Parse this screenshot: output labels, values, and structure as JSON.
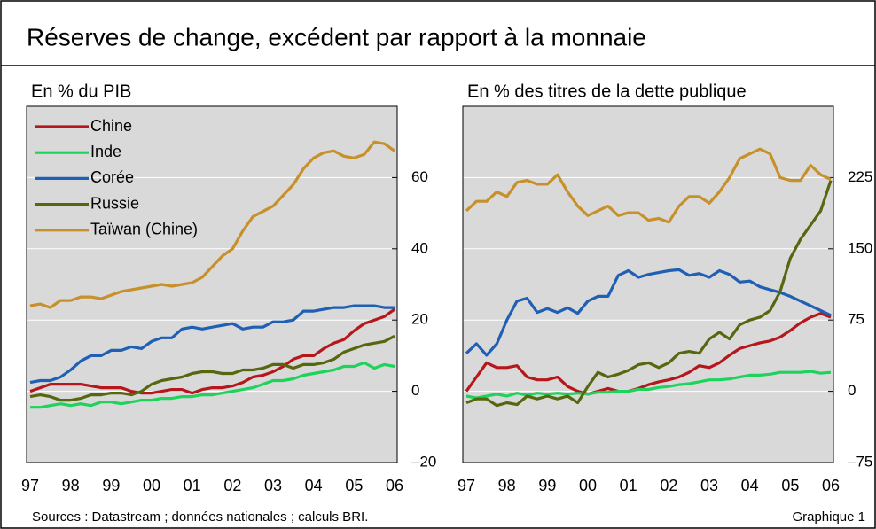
{
  "title": "Réserves de change, excédent par rapport à la monnaie",
  "source": "Sources : Datastream ; données nationales ; calculs BRI.",
  "figure_label": "Graphique 1",
  "chart_data": [
    {
      "type": "line",
      "title": "En % du PIB",
      "categories": [
        "97",
        null,
        null,
        null,
        "98",
        null,
        null,
        null,
        "99",
        null,
        null,
        null,
        "00",
        null,
        null,
        null,
        "01",
        null,
        null,
        null,
        "02",
        null,
        null,
        null,
        "03",
        null,
        null,
        null,
        "04",
        null,
        null,
        null,
        "05",
        null,
        null,
        null,
        "06"
      ],
      "ylim": [
        -20,
        80
      ],
      "yticks": [
        {
          "value": -20,
          "label": "–20"
        },
        0,
        20,
        40,
        60
      ],
      "grid": true,
      "legend": "upper-left",
      "series": [
        {
          "name": "Chine",
          "color": "#b5171c",
          "values": [
            0,
            1,
            2,
            2,
            2,
            2,
            1.5,
            1,
            1,
            1,
            0,
            -0.5,
            -0.5,
            0,
            0.5,
            0.5,
            -0.5,
            0.5,
            1,
            1,
            1.5,
            2.5,
            4,
            4.5,
            5.5,
            7,
            9,
            10,
            10,
            12,
            13.5,
            14.5,
            17,
            19,
            20,
            21,
            23
          ]
        },
        {
          "name": "Inde",
          "color": "#1ed35c",
          "values": [
            -4.5,
            -4.5,
            -4,
            -3.5,
            -4,
            -3.5,
            -4,
            -3,
            -3,
            -3.5,
            -3,
            -2.5,
            -2.5,
            -2,
            -2,
            -1.5,
            -1.5,
            -1,
            -1,
            -0.5,
            0,
            0.5,
            1,
            2,
            3,
            3,
            3.5,
            4.5,
            5,
            5.5,
            6,
            7,
            7,
            8,
            6.5,
            7.5,
            7
          ]
        },
        {
          "name": "Corée",
          "color": "#1f5fb4",
          "values": [
            2.5,
            3,
            3,
            4,
            6,
            8.5,
            10,
            10,
            11.5,
            11.5,
            12.5,
            12,
            14,
            15,
            15,
            17.5,
            18,
            17.5,
            18,
            18.5,
            19,
            17.5,
            18,
            18,
            19.5,
            19.5,
            20,
            22.5,
            22.5,
            23,
            23.5,
            23.5,
            24,
            24,
            24,
            23.5,
            23.5
          ]
        },
        {
          "name": "Russie",
          "color": "#56680f",
          "values": [
            -1.5,
            -1,
            -1.5,
            -2.5,
            -2.5,
            -2,
            -1,
            -1,
            -0.5,
            -0.5,
            -1,
            0,
            2,
            3,
            3.5,
            4,
            5,
            5.5,
            5.5,
            5,
            5,
            6,
            6,
            6.5,
            7.5,
            7.5,
            6.5,
            7.5,
            7.5,
            8,
            9,
            11,
            12,
            13,
            13.5,
            14,
            15.5
          ]
        },
        {
          "name": "Taïwan (Chine)",
          "color": "#c8902a",
          "values": [
            24,
            24.5,
            23.5,
            25.5,
            25.5,
            26.5,
            26.5,
            26,
            27,
            28,
            28.5,
            29,
            29.5,
            30,
            29.5,
            30,
            30.5,
            32,
            35,
            38,
            40,
            45,
            49,
            50.5,
            52,
            55,
            58,
            62.5,
            65.5,
            67,
            67.5,
            66,
            65.5,
            66.5,
            70,
            69.5,
            67.5
          ]
        }
      ]
    },
    {
      "type": "line",
      "title": "En % des titres de la dette publique",
      "categories": [
        "97",
        null,
        null,
        null,
        "98",
        null,
        null,
        null,
        "99",
        null,
        null,
        null,
        "00",
        null,
        null,
        null,
        "01",
        null,
        null,
        null,
        "02",
        null,
        null,
        null,
        "03",
        null,
        null,
        null,
        "04",
        null,
        null,
        null,
        "05",
        null,
        null,
        null,
        "06"
      ],
      "ylim": [
        -75,
        300
      ],
      "yticks": [
        {
          "value": -75,
          "label": "–75"
        },
        0,
        75,
        150,
        225
      ],
      "grid": true,
      "series": [
        {
          "color": "#b5171c",
          "values": [
            0,
            15,
            30,
            25,
            25,
            27,
            15,
            12,
            12,
            15,
            5,
            0,
            -3,
            0,
            3,
            0,
            0,
            3,
            7,
            10,
            12,
            15,
            20,
            27,
            25,
            30,
            38,
            45,
            48,
            51,
            53,
            57,
            64,
            72,
            78,
            82,
            78
          ]
        },
        {
          "color": "#1ed35c",
          "values": [
            -5,
            -7,
            -5,
            -3,
            -5,
            -2,
            -4,
            -2,
            -3,
            -2,
            -3,
            -2,
            -3,
            -1,
            -1,
            0,
            0,
            2,
            2,
            4,
            5,
            7,
            8,
            10,
            12,
            12,
            13,
            15,
            17,
            17,
            18,
            20,
            20,
            20,
            21,
            19,
            20
          ]
        },
        {
          "color": "#1f5fb4",
          "values": [
            40,
            50,
            38,
            50,
            75,
            95,
            98,
            83,
            87,
            83,
            88,
            82,
            95,
            100,
            100,
            122,
            127,
            120,
            123,
            125,
            127,
            128,
            122,
            124,
            120,
            127,
            123,
            115,
            116,
            110,
            107,
            104,
            100,
            95,
            90,
            85,
            80
          ]
        },
        {
          "color": "#56680f",
          "values": [
            -12,
            -8,
            -8,
            -15,
            -12,
            -14,
            -5,
            -8,
            -5,
            -8,
            -5,
            -12,
            5,
            20,
            15,
            18,
            22,
            28,
            30,
            25,
            30,
            40,
            42,
            40,
            55,
            62,
            55,
            70,
            75,
            78,
            85,
            105,
            140,
            160,
            175,
            190,
            222
          ]
        },
        {
          "color": "#c8902a",
          "values": [
            190,
            200,
            200,
            210,
            205,
            220,
            222,
            218,
            218,
            228,
            210,
            195,
            185,
            190,
            195,
            185,
            188,
            188,
            180,
            182,
            178,
            195,
            205,
            205,
            198,
            210,
            225,
            245,
            250,
            255,
            250,
            225,
            222,
            222,
            238,
            228,
            223
          ]
        }
      ]
    }
  ]
}
